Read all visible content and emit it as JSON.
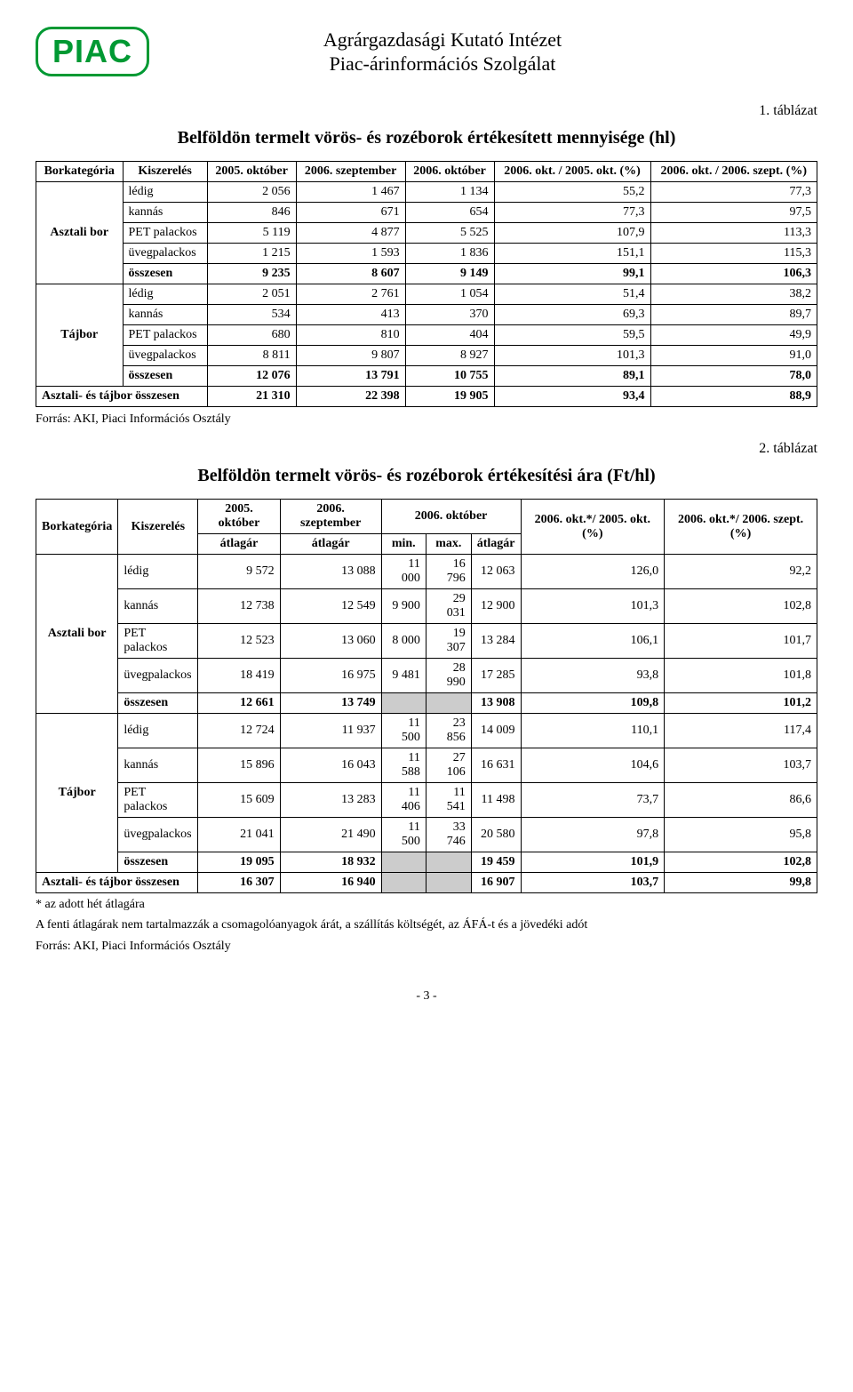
{
  "header": {
    "logo_text": "PIAC",
    "line1": "Agrárgazdasági Kutató Intézet",
    "line2": "Piac-árinformációs Szolgálat"
  },
  "t1": {
    "caption": "1. táblázat",
    "title": "Belföldön termelt vörös- és rozéborok értékesített mennyisége (hl)",
    "headers": {
      "cat": "Borkategória",
      "kiz": "Kiszerelés",
      "c1": "2005. október",
      "c2": "2006. szeptember",
      "c3": "2006. október",
      "c4": "2006. okt. / 2005. okt. (%)",
      "c5": "2006. okt. / 2006. szept. (%)"
    },
    "groups": [
      {
        "cat": "Asztali bor",
        "rows": [
          {
            "k": "lédig",
            "v": [
              "2 056",
              "1 467",
              "1 134",
              "55,2",
              "77,3"
            ]
          },
          {
            "k": "kannás",
            "v": [
              "846",
              "671",
              "654",
              "77,3",
              "97,5"
            ]
          },
          {
            "k": "PET palackos",
            "v": [
              "5 119",
              "4 877",
              "5 525",
              "107,9",
              "113,3"
            ]
          },
          {
            "k": "üvegpalackos",
            "v": [
              "1 215",
              "1 593",
              "1 836",
              "151,1",
              "115,3"
            ]
          },
          {
            "k": "összesen",
            "bold": true,
            "v": [
              "9 235",
              "8 607",
              "9 149",
              "99,1",
              "106,3"
            ]
          }
        ]
      },
      {
        "cat": "Tájbor",
        "rows": [
          {
            "k": "lédig",
            "v": [
              "2 051",
              "2 761",
              "1 054",
              "51,4",
              "38,2"
            ]
          },
          {
            "k": "kannás",
            "v": [
              "534",
              "413",
              "370",
              "69,3",
              "89,7"
            ]
          },
          {
            "k": "PET palackos",
            "v": [
              "680",
              "810",
              "404",
              "59,5",
              "49,9"
            ]
          },
          {
            "k": "üvegpalackos",
            "v": [
              "8 811",
              "9 807",
              "8 927",
              "101,3",
              "91,0"
            ]
          },
          {
            "k": "összesen",
            "bold": true,
            "v": [
              "12 076",
              "13 791",
              "10 755",
              "89,1",
              "78,0"
            ]
          }
        ]
      }
    ],
    "total": {
      "label": "Asztali- és tájbor összesen",
      "v": [
        "21 310",
        "22 398",
        "19 905",
        "93,4",
        "88,9"
      ]
    },
    "source": "Forrás: AKI, Piaci Információs Osztály"
  },
  "t2": {
    "caption": "2. táblázat",
    "title": "Belföldön termelt vörös- és rozéborok értékesítési ára (Ft/hl)",
    "headers": {
      "cat": "Borkategória",
      "kiz": "Kiszerelés",
      "c1": "2005. október",
      "c2": "2006. szeptember",
      "c3": "2006. október",
      "c4": "2006. okt.*/ 2005. okt. (%)",
      "c5": "2006. okt.*/ 2006. szept. (%)",
      "sub1": "átlagár",
      "sub2": "átlagár",
      "sub3a": "min.",
      "sub3b": "max.",
      "sub3c": "átlagár"
    },
    "groups": [
      {
        "cat": "Asztali bor",
        "rows": [
          {
            "k": "lédig",
            "v": [
              "9 572",
              "13 088",
              "11 000",
              "16 796",
              "12 063",
              "126,0",
              "92,2"
            ]
          },
          {
            "k": "kannás",
            "v": [
              "12 738",
              "12 549",
              "9 900",
              "29 031",
              "12 900",
              "101,3",
              "102,8"
            ]
          },
          {
            "k": "PET palackos",
            "v": [
              "12 523",
              "13 060",
              "8 000",
              "19 307",
              "13 284",
              "106,1",
              "101,7"
            ]
          },
          {
            "k": "üvegpalackos",
            "v": [
              "18 419",
              "16 975",
              "9 481",
              "28 990",
              "17 285",
              "93,8",
              "101,8"
            ]
          },
          {
            "k": "összesen",
            "bold": true,
            "grey": [
              2,
              3
            ],
            "v": [
              "12 661",
              "13 749",
              "",
              "",
              "13 908",
              "109,8",
              "101,2"
            ]
          }
        ]
      },
      {
        "cat": "Tájbor",
        "rows": [
          {
            "k": "lédig",
            "v": [
              "12 724",
              "11 937",
              "11 500",
              "23 856",
              "14 009",
              "110,1",
              "117,4"
            ]
          },
          {
            "k": "kannás",
            "v": [
              "15 896",
              "16 043",
              "11 588",
              "27 106",
              "16 631",
              "104,6",
              "103,7"
            ]
          },
          {
            "k": "PET palackos",
            "v": [
              "15 609",
              "13 283",
              "11 406",
              "11 541",
              "11 498",
              "73,7",
              "86,6"
            ]
          },
          {
            "k": "üvegpalackos",
            "v": [
              "21 041",
              "21 490",
              "11 500",
              "33 746",
              "20 580",
              "97,8",
              "95,8"
            ]
          },
          {
            "k": "összesen",
            "bold": true,
            "grey": [
              2,
              3
            ],
            "v": [
              "19 095",
              "18 932",
              "",
              "",
              "19 459",
              "101,9",
              "102,8"
            ]
          }
        ]
      }
    ],
    "total": {
      "label": "Asztali- és tájbor összesen",
      "grey": [
        2,
        3
      ],
      "v": [
        "16 307",
        "16 940",
        "",
        "",
        "16 907",
        "103,7",
        "99,8"
      ]
    },
    "footnote1": "* az adott hét átlagára",
    "footnote2": "A fenti átlagárak nem tartalmazzák a csomagolóanyagok árát, a szállítás költségét, az ÁFÁ-t és a jövedéki adót",
    "source": "Forrás: AKI, Piaci Információs Osztály"
  },
  "pagenum": "- 3 -"
}
